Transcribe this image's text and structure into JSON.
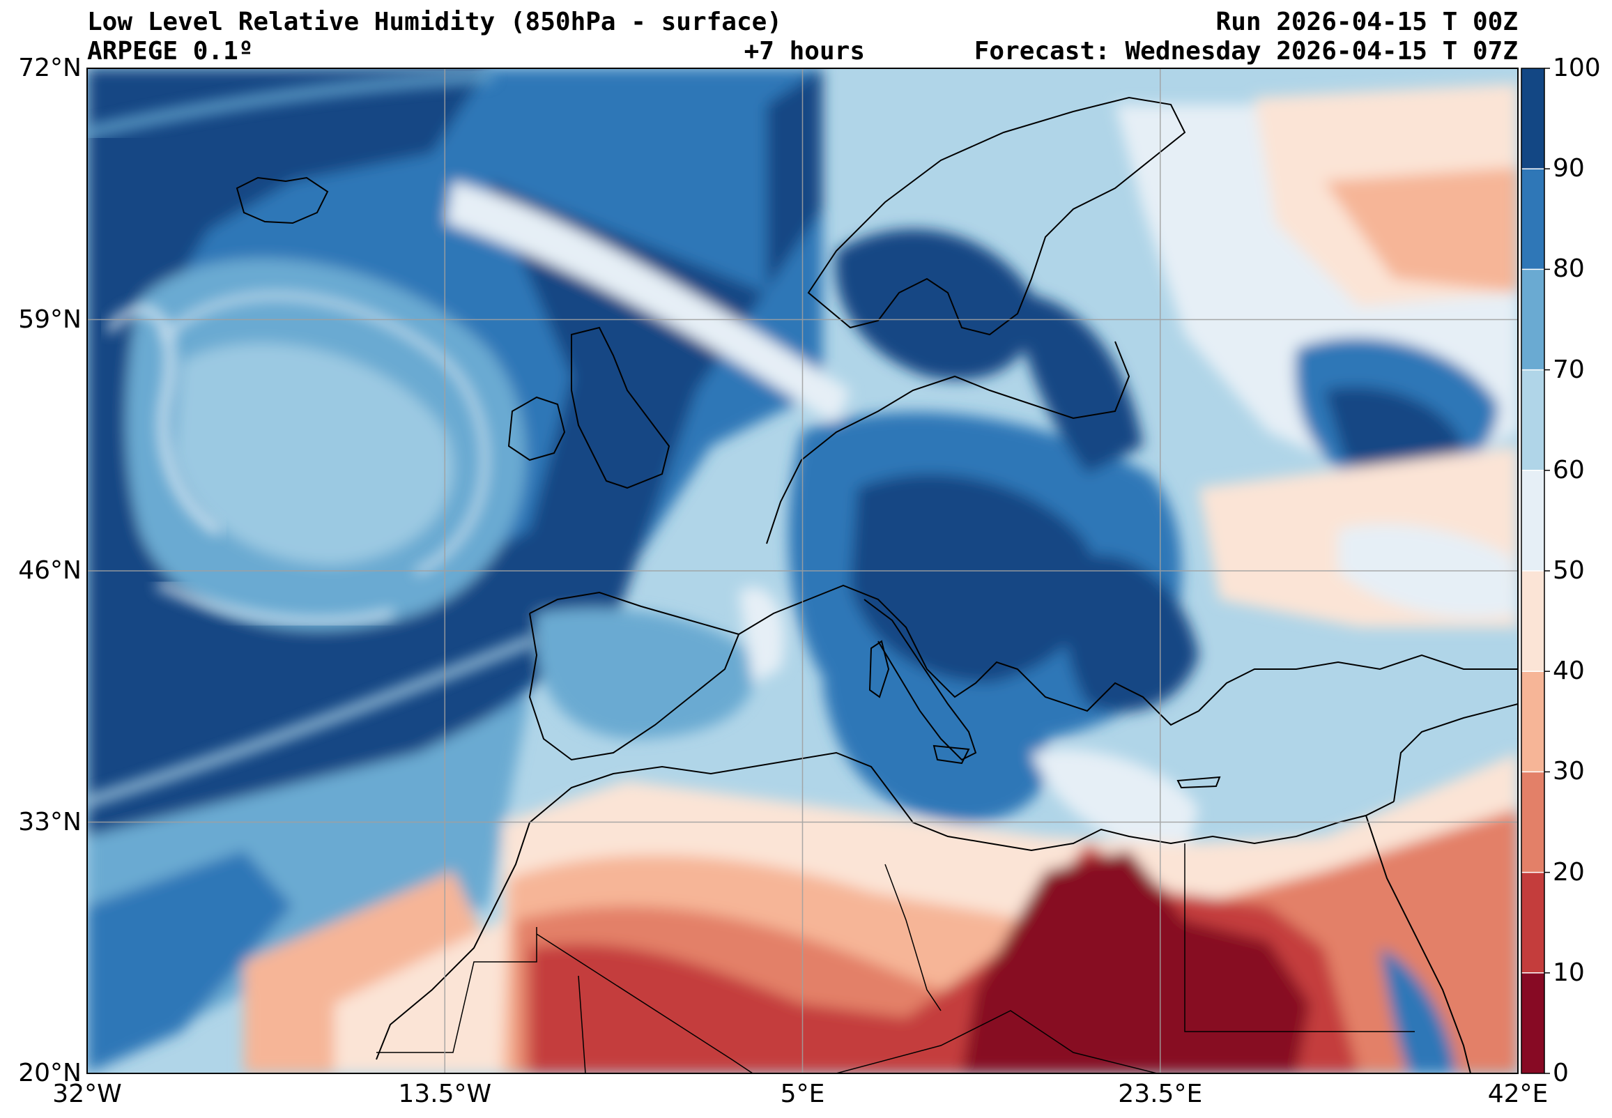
{
  "header": {
    "title": "Low Level Relative Humidity (850hPa - surface)",
    "model": "ARPEGE 0.1º",
    "lead_time": "+7 hours",
    "run": "Run 2026-04-15 T 00Z",
    "forecast": "Forecast: Wednesday 2026-04-15 T 07Z"
  },
  "map": {
    "extent": {
      "lon_min": -32,
      "lon_max": 42,
      "lat_min": 20,
      "lat_max": 72
    },
    "lon_ticks": [
      {
        "value": -32,
        "label": "32°W"
      },
      {
        "value": -13.5,
        "label": "13.5°W"
      },
      {
        "value": 5,
        "label": "5°E"
      },
      {
        "value": 23.5,
        "label": "23.5°E"
      },
      {
        "value": 42,
        "label": "42°E"
      }
    ],
    "lat_ticks": [
      {
        "value": 72,
        "label": "72°N"
      },
      {
        "value": 59,
        "label": "59°N"
      },
      {
        "value": 46,
        "label": "46°N"
      },
      {
        "value": 33,
        "label": "33°N"
      },
      {
        "value": 20,
        "label": "20°N"
      }
    ],
    "grid": true
  },
  "colorbar": {
    "levels": [
      0,
      10,
      20,
      30,
      40,
      50,
      60,
      70,
      80,
      90,
      100
    ],
    "labels": [
      "0",
      "10",
      "20",
      "30",
      "40",
      "50",
      "60",
      "70",
      "80",
      "90",
      "100"
    ],
    "colors": [
      "#870a24",
      "#c43d3c",
      "#e38068",
      "#f6b597",
      "#fbe4d6",
      "#e6eff6",
      "#b0d5e8",
      "#6aaad2",
      "#2f77b7",
      "#134784"
    ]
  }
}
